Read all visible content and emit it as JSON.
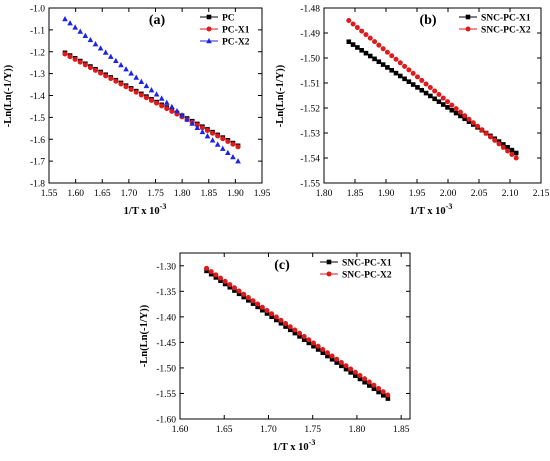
{
  "chart_data": [
    {
      "type": "scatter",
      "panel_label": "(a)",
      "xlabel": "1/T x 10",
      "xlabel_sup": "-3",
      "ylabel": "-Ln(Ln(-1/Y))",
      "xlim": [
        1.55,
        1.95
      ],
      "ylim": [
        -1.8,
        -1.0
      ],
      "xticks": [
        "1.55",
        "1.60",
        "1.65",
        "1.70",
        "1.75",
        "1.80",
        "1.85",
        "1.90",
        "1.95"
      ],
      "yticks": [
        "-1.0",
        "-1.1",
        "-1.2",
        "-1.3",
        "-1.4",
        "-1.5",
        "-1.6",
        "-1.7",
        "-1.8"
      ],
      "legend_position": "top-right",
      "series": [
        {
          "name": "PC",
          "color": "#000000",
          "marker": "square",
          "x_range": [
            1.58,
            1.905
          ],
          "y_range": [
            -1.205,
            -1.63
          ],
          "points": 35
        },
        {
          "name": "PC-X1",
          "color": "#e0191b",
          "marker": "circle",
          "x_range": [
            1.58,
            1.905
          ],
          "y_range": [
            -1.21,
            -1.635
          ],
          "points": 35
        },
        {
          "name": "PC-X2",
          "color": "#1c24e6",
          "marker": "triangle",
          "x_range": [
            1.58,
            1.905
          ],
          "y_range": [
            -1.05,
            -1.7
          ],
          "points": 35
        }
      ]
    },
    {
      "type": "scatter",
      "panel_label": "(b)",
      "xlabel": "1/T x 10",
      "xlabel_sup": "-3",
      "ylabel": "-Ln(Ln(-1/Y))",
      "xlim": [
        1.8,
        2.15
      ],
      "ylim": [
        -1.55,
        -1.48
      ],
      "xticks": [
        "1.80",
        "1.85",
        "1.90",
        "1.95",
        "2.00",
        "2.05",
        "2.10",
        "2.15"
      ],
      "yticks": [
        "-1.48",
        "-1.49",
        "-1.50",
        "-1.51",
        "-1.52",
        "-1.53",
        "-1.54",
        "-1.55"
      ],
      "legend_position": "top-right",
      "series": [
        {
          "name": "SNC-PC-X1",
          "color": "#000000",
          "marker": "square",
          "x_range": [
            1.84,
            2.11
          ],
          "y_range": [
            -1.4935,
            -1.538
          ],
          "points": 40
        },
        {
          "name": "SNC-PC-X2",
          "color": "#e0191b",
          "marker": "circle",
          "x_range": [
            1.84,
            2.11
          ],
          "y_range": [
            -1.485,
            -1.54
          ],
          "points": 40
        }
      ]
    },
    {
      "type": "scatter",
      "panel_label": "(c)",
      "xlabel": "1/T x 10",
      "xlabel_sup": "-3",
      "ylabel": "-Ln(Ln(-1/Y))",
      "xlim": [
        1.6,
        1.86
      ],
      "ylim": [
        -1.6,
        -1.275
      ],
      "xticks": [
        "1.60",
        "1.65",
        "1.70",
        "1.75",
        "1.80",
        "1.85"
      ],
      "yticks": [
        "-1.30",
        "-1.35",
        "-1.40",
        "-1.45",
        "-1.50",
        "-1.55",
        "-1.60"
      ],
      "legend_position": "top-right",
      "series": [
        {
          "name": "SNC-PC-X1",
          "color": "#000000",
          "marker": "square",
          "x_range": [
            1.63,
            1.835
          ],
          "y_range": [
            -1.31,
            -1.56
          ],
          "points": 40
        },
        {
          "name": "SNC-PC-X2",
          "color": "#e0191b",
          "marker": "circle",
          "x_range": [
            1.63,
            1.835
          ],
          "y_range": [
            -1.305,
            -1.553
          ],
          "points": 40
        }
      ]
    }
  ]
}
